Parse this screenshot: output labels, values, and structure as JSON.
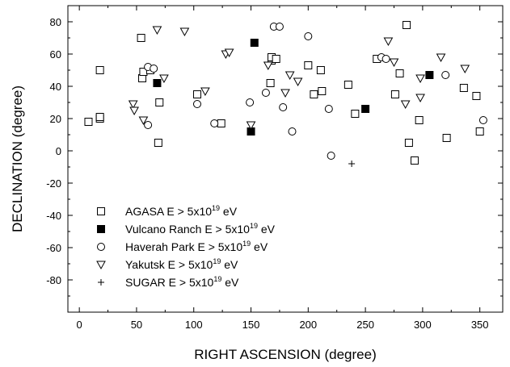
{
  "chart_data": {
    "type": "scatter",
    "xlabel": "RIGHT ASCENSION (degree)",
    "ylabel": "DECLINATION (degree)",
    "xlim": [
      -10,
      370
    ],
    "ylim": [
      -100,
      90
    ],
    "xticks": [
      0,
      50,
      100,
      150,
      200,
      250,
      300,
      350
    ],
    "yticks": [
      -80,
      -60,
      -40,
      -20,
      0,
      20,
      40,
      60,
      80
    ],
    "grid": false,
    "legend_position": "bottom-left",
    "series": [
      {
        "name": "AGASA E > 5x10",
        "sup": "19",
        "unit": " eV",
        "marker": "open-square",
        "points": [
          [
            8,
            18
          ],
          [
            18,
            20
          ],
          [
            18,
            21
          ],
          [
            18,
            50
          ],
          [
            54,
            70
          ],
          [
            55,
            45
          ],
          [
            56,
            49
          ],
          [
            62,
            50
          ],
          [
            69,
            5
          ],
          [
            70,
            30
          ],
          [
            103,
            35
          ],
          [
            124,
            17
          ],
          [
            167,
            42
          ],
          [
            168,
            56
          ],
          [
            168,
            58
          ],
          [
            172,
            57
          ],
          [
            200,
            53
          ],
          [
            205,
            35
          ],
          [
            211,
            50
          ],
          [
            212,
            37
          ],
          [
            235,
            41
          ],
          [
            241,
            23
          ],
          [
            260,
            57
          ],
          [
            280,
            48
          ],
          [
            276,
            35
          ],
          [
            286,
            78
          ],
          [
            288,
            5
          ],
          [
            293,
            -6
          ],
          [
            297,
            19
          ],
          [
            321,
            8
          ],
          [
            336,
            39
          ],
          [
            347,
            34
          ],
          [
            350,
            12
          ]
        ]
      },
      {
        "name": "Vulcano Ranch E > 5x10",
        "sup": "19",
        "unit": " eV",
        "marker": "filled-square",
        "points": [
          [
            68,
            42
          ],
          [
            150,
            12
          ],
          [
            153,
            67
          ],
          [
            250,
            26
          ],
          [
            306,
            47
          ]
        ]
      },
      {
        "name": "Haverah Park E > 5x10",
        "sup": "19",
        "unit": " eV",
        "marker": "open-circle",
        "points": [
          [
            60,
            16
          ],
          [
            60,
            52
          ],
          [
            65,
            51
          ],
          [
            103,
            29
          ],
          [
            118,
            17
          ],
          [
            149,
            30
          ],
          [
            163,
            36
          ],
          [
            170,
            77
          ],
          [
            175,
            77
          ],
          [
            178,
            27
          ],
          [
            186,
            12
          ],
          [
            200,
            71
          ],
          [
            218,
            26
          ],
          [
            220,
            -3
          ],
          [
            264,
            58
          ],
          [
            268,
            57
          ],
          [
            320,
            47
          ],
          [
            353,
            19
          ]
        ]
      },
      {
        "name": "Yakutsk E > 5x10",
        "sup": "19",
        "unit": " eV",
        "marker": "open-triangle-down",
        "points": [
          [
            47,
            29
          ],
          [
            48,
            25
          ],
          [
            56,
            19
          ],
          [
            68,
            75
          ],
          [
            74,
            45
          ],
          [
            92,
            74
          ],
          [
            110,
            37
          ],
          [
            128,
            60
          ],
          [
            131,
            61
          ],
          [
            150,
            16
          ],
          [
            165,
            53
          ],
          [
            180,
            36
          ],
          [
            184,
            47
          ],
          [
            191,
            43
          ],
          [
            270,
            68
          ],
          [
            275,
            55
          ],
          [
            285,
            29
          ],
          [
            298,
            45
          ],
          [
            298,
            33
          ],
          [
            316,
            58
          ],
          [
            337,
            51
          ]
        ]
      },
      {
        "name": "SUGAR E > 5x10",
        "sup": "19",
        "unit": " eV",
        "marker": "plus",
        "points": [
          [
            238,
            -8
          ]
        ]
      }
    ]
  }
}
